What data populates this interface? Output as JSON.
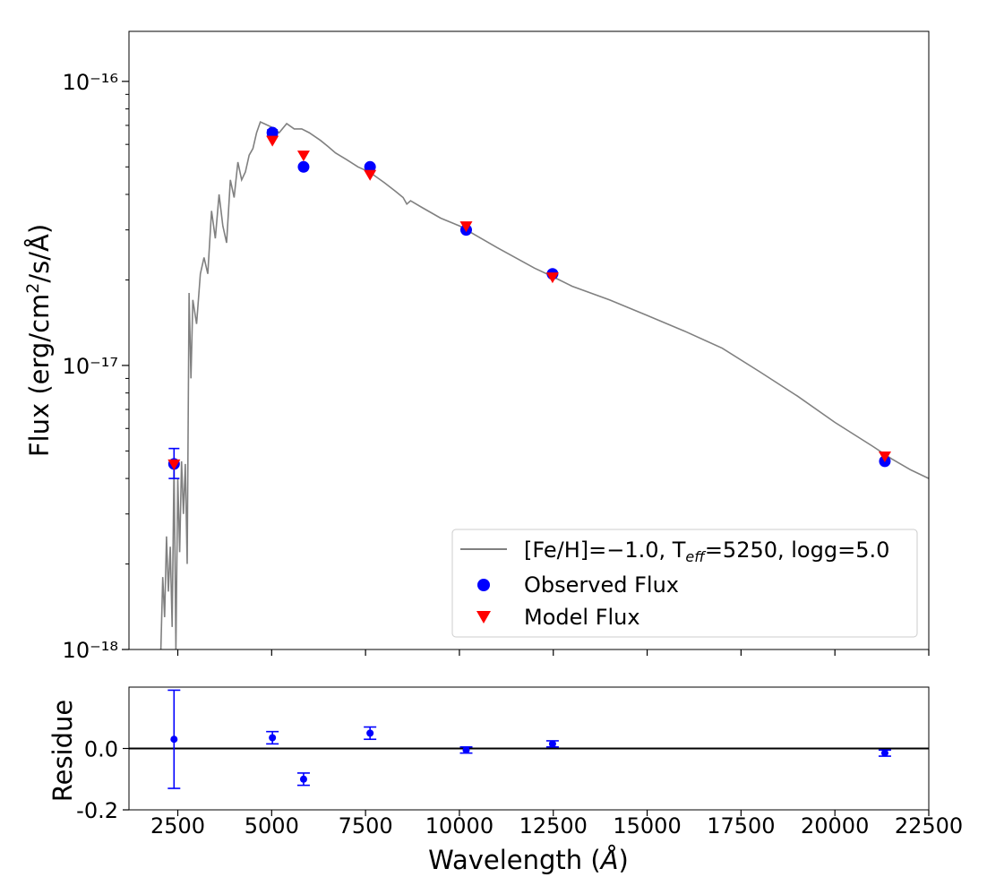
{
  "chart_data": [
    {
      "type": "scatter",
      "panel": "main",
      "yscale": "log",
      "xlim": [
        1200,
        22500
      ],
      "ylim": [
        1e-18,
        1.5e-16
      ],
      "ylabel": "Flux (erg/cm²/s/Å)",
      "ytick_labels": [
        "10⁻¹⁶",
        "10⁻¹⁷",
        "10⁻¹⁸"
      ],
      "ytick_values": [
        1e-16,
        1e-17,
        1e-18
      ],
      "legend": {
        "position": "lower-right",
        "entries": [
          "[Fe/H]=−1.0, T_eff=5250, logg=5.0",
          "Observed Flux",
          "Model Flux"
        ]
      },
      "series": [
        {
          "name": "[Fe/H]=−1.0, T_eff=5250, logg=5.0",
          "kind": "line",
          "color": "#808080",
          "x": [
            2050,
            2100,
            2150,
            2200,
            2250,
            2300,
            2350,
            2400,
            2450,
            2500,
            2550,
            2600,
            2650,
            2700,
            2750,
            2800,
            2850,
            2900,
            3000,
            3100,
            3200,
            3300,
            3400,
            3500,
            3600,
            3700,
            3800,
            3900,
            4000,
            4100,
            4200,
            4300,
            4400,
            4500,
            4600,
            4700,
            4800,
            5000,
            5200,
            5400,
            5600,
            5800,
            6000,
            6300,
            6500,
            6700,
            7000,
            7300,
            7600,
            8000,
            8300,
            8500,
            8600,
            8700,
            9000,
            9500,
            10000,
            11000,
            12000,
            12500,
            13000,
            14000,
            15000,
            16000,
            17000,
            18000,
            19000,
            20000,
            21000,
            21500,
            22000,
            22500
          ],
          "y": [
            1e-18,
            1.8e-18,
            1.3e-18,
            2.5e-18,
            1.6e-18,
            2.3e-18,
            1.2e-18,
            4.5e-18,
            1e-18,
            4e-18,
            2.2e-18,
            4.6e-18,
            3e-18,
            4.5e-18,
            2e-18,
            1.8e-17,
            9e-18,
            1.7e-17,
            1.4e-17,
            2.1e-17,
            2.4e-17,
            2.1e-17,
            3.5e-17,
            2.8e-17,
            4e-17,
            3.1e-17,
            2.7e-17,
            4.5e-17,
            3.9e-17,
            5.2e-17,
            4.5e-17,
            4.8e-17,
            5.5e-17,
            5.8e-17,
            6.6e-17,
            7.2e-17,
            7.1e-17,
            6.9e-17,
            6.6e-17,
            7.1e-17,
            6.8e-17,
            6.8e-17,
            6.6e-17,
            6.2e-17,
            5.9e-17,
            5.6e-17,
            5.3e-17,
            5e-17,
            4.8e-17,
            4.4e-17,
            4.1e-17,
            3.9e-17,
            3.7e-17,
            3.8e-17,
            3.6e-17,
            3.3e-17,
            3.1e-17,
            2.6e-17,
            2.2e-17,
            2.05e-17,
            1.9e-17,
            1.7e-17,
            1.5e-17,
            1.32e-17,
            1.15e-17,
            9.5e-18,
            7.8e-18,
            6.3e-18,
            5.2e-18,
            4.7e-18,
            4.3e-18,
            4e-18
          ]
        },
        {
          "name": "Observed Flux",
          "kind": "scatter",
          "marker": "circle",
          "color": "#0000ff",
          "x": [
            2400,
            5020,
            5850,
            7620,
            10180,
            12480,
            21330
          ],
          "y": [
            4.5e-18,
            6.6e-17,
            5e-17,
            5e-17,
            3e-17,
            2.1e-17,
            4.6e-18
          ],
          "err_low": [
            4e-18,
            6.45e-17,
            null,
            null,
            null,
            null,
            null
          ],
          "err_high": [
            5.1e-18,
            6.75e-17,
            null,
            null,
            null,
            null,
            null
          ]
        },
        {
          "name": "Model Flux",
          "kind": "scatter",
          "marker": "triangle-down",
          "color": "#ff0000",
          "x": [
            2400,
            5020,
            5850,
            7620,
            10180,
            12480,
            21330
          ],
          "y": [
            4.5e-18,
            6.2e-17,
            5.5e-17,
            4.7e-17,
            3.1e-17,
            2.05e-17,
            4.8e-18
          ]
        }
      ]
    },
    {
      "type": "scatter",
      "panel": "residue",
      "xlim": [
        1200,
        22500
      ],
      "ylim": [
        -0.2,
        0.2
      ],
      "xlabel": "Wavelength (Å)",
      "ylabel": "Residue",
      "xtick_values": [
        2500,
        5000,
        7500,
        10000,
        12500,
        15000,
        17500,
        20000,
        22500
      ],
      "xtick_labels": [
        "2500",
        "5000",
        "7500",
        "10000",
        "12500",
        "15000",
        "17500",
        "20000",
        "22500"
      ],
      "ytick_values": [
        0.0,
        -0.2
      ],
      "ytick_labels": [
        "0.0",
        "-0.2"
      ],
      "hline": 0.0,
      "series": [
        {
          "name": "Residue",
          "color": "#0000ff",
          "x": [
            2400,
            5020,
            5850,
            7620,
            10180,
            12480,
            21330
          ],
          "y": [
            0.03,
            0.035,
            -0.1,
            0.05,
            -0.005,
            0.015,
            -0.015
          ],
          "err_low": [
            -0.13,
            0.015,
            -0.12,
            0.03,
            -0.015,
            0.005,
            -0.025
          ],
          "err_high": [
            0.19,
            0.055,
            -0.08,
            0.07,
            0.005,
            0.025,
            -0.005
          ]
        }
      ]
    }
  ],
  "legend_labels": {
    "line_label": "[Fe/H]=−1.0, T",
    "teff_sub": "eff",
    "line_label_rest": "=5250, logg=5.0",
    "observed": "Observed Flux",
    "model": "Model Flux"
  },
  "axis_text": {
    "main_ylabel": "Flux (erg/cm",
    "main_ylabel_sup": "2",
    "main_ylabel_rest": "/s/Å)",
    "residue_ylabel": "Residue",
    "xlabel": "Wavelength (",
    "xlabel_unit": "Å",
    "xlabel_close": ")"
  }
}
